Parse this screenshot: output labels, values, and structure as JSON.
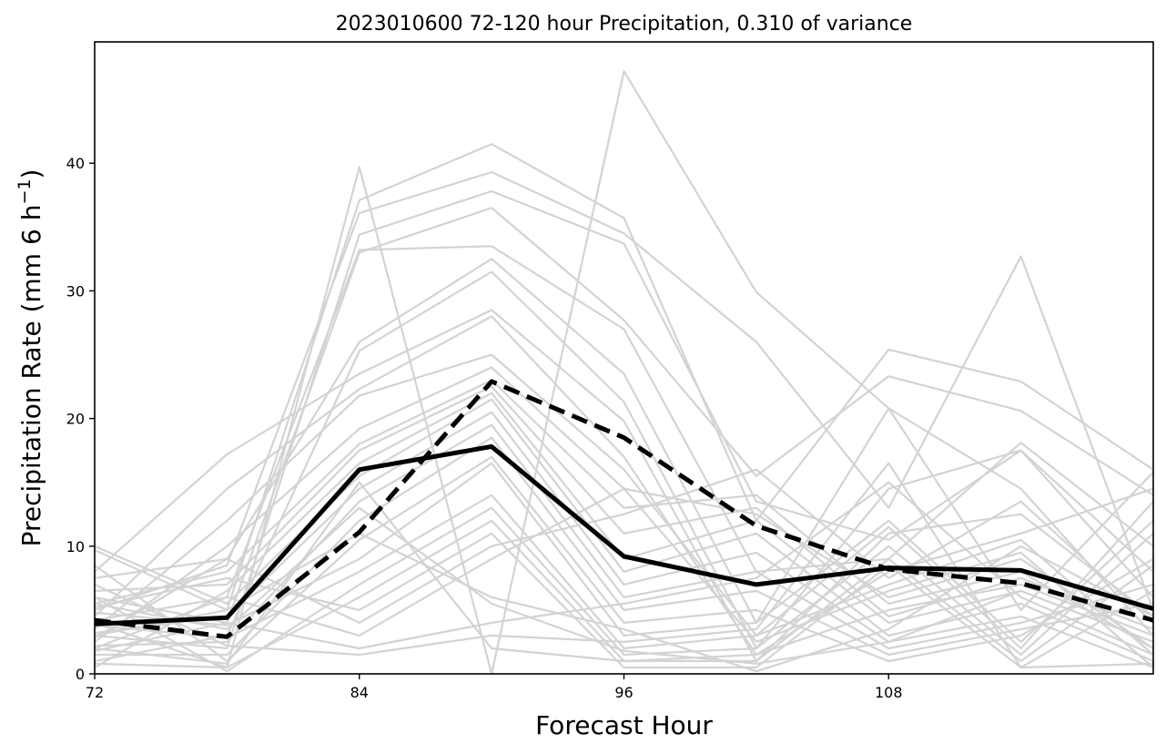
{
  "chart_data": {
    "type": "line",
    "title": "2023010600 72-120 hour Precipitation, 0.310 of variance",
    "xlabel": "Forecast Hour",
    "ylabel_main": "Precipitation Rate (mm 6 h",
    "ylabel_sup": "−1",
    "ylabel_close": ")",
    "xlim": [
      72,
      120
    ],
    "ylim": [
      0,
      49.5
    ],
    "xticks": [
      72,
      84,
      96,
      108
    ],
    "yticks": [
      0,
      10,
      20,
      30,
      40
    ],
    "x": [
      72,
      78,
      84,
      90,
      96,
      102,
      108,
      114,
      120
    ],
    "grid": false,
    "ensemble_color": "#d3d3d3",
    "highlight_color": "#000000",
    "ensemble": [
      [
        4.0,
        0.5,
        39.7,
        0.0,
        47.2,
        29.9,
        20.8,
        5.0,
        15.8
      ],
      [
        9.7,
        5.0,
        37.1,
        41.5,
        35.7,
        12.0,
        25.4,
        22.9,
        16.0
      ],
      [
        5.0,
        8.5,
        36.1,
        39.3,
        34.5,
        26.0,
        13.0,
        32.7,
        5.0
      ],
      [
        3.0,
        2.0,
        34.4,
        37.8,
        33.7,
        13.5,
        10.5,
        17.5,
        8.0
      ],
      [
        6.0,
        4.0,
        33.0,
        36.5,
        27.7,
        15.5,
        23.3,
        20.6,
        14.0
      ],
      [
        2.0,
        6.0,
        33.2,
        33.5,
        27.0,
        8.0,
        9.0,
        18.1,
        10.0
      ],
      [
        7.5,
        9.0,
        26.0,
        32.5,
        23.5,
        4.0,
        20.8,
        14.5,
        3.0
      ],
      [
        1.0,
        3.0,
        25.3,
        31.5,
        21.3,
        2.0,
        14.5,
        17.5,
        6.0
      ],
      [
        8.0,
        17.2,
        23.5,
        28.5,
        19.8,
        1.0,
        11.0,
        12.5,
        4.5
      ],
      [
        4.5,
        14.5,
        22.3,
        28.0,
        17.0,
        1.5,
        8.0,
        11.0,
        14.5
      ],
      [
        3.5,
        12.0,
        21.8,
        25.0,
        16.0,
        3.0,
        7.0,
        10.5,
        1.5
      ],
      [
        2.5,
        10.0,
        19.2,
        24.0,
        14.5,
        2.5,
        6.5,
        9.5,
        0.5
      ],
      [
        5.5,
        8.0,
        18.0,
        23.0,
        13.0,
        14.0,
        5.5,
        8.0,
        2.0
      ],
      [
        6.5,
        7.0,
        17.5,
        22.5,
        11.0,
        13.0,
        4.5,
        7.5,
        3.5
      ],
      [
        0.5,
        6.5,
        16.5,
        22.0,
        9.0,
        12.0,
        4.0,
        6.5,
        2.5
      ],
      [
        10.0,
        5.5,
        15.5,
        21.5,
        8.0,
        11.0,
        3.0,
        5.5,
        1.0
      ],
      [
        3.2,
        4.5,
        14.5,
        20.5,
        7.0,
        9.5,
        2.5,
        4.5,
        0.5
      ],
      [
        2.2,
        2.5,
        13.5,
        19.5,
        6.0,
        8.0,
        2.0,
        4.0,
        7.0
      ],
      [
        1.5,
        1.5,
        12.0,
        18.5,
        5.0,
        6.5,
        1.5,
        3.5,
        5.5
      ],
      [
        8.5,
        1.0,
        10.5,
        17.0,
        4.0,
        5.0,
        1.0,
        3.0,
        9.0
      ],
      [
        4.8,
        3.8,
        9.0,
        16.5,
        3.0,
        4.0,
        12.0,
        2.5,
        12.0
      ],
      [
        3.8,
        2.8,
        8.0,
        14.0,
        2.0,
        3.0,
        11.5,
        2.0,
        13.5
      ],
      [
        6.0,
        0.2,
        7.0,
        13.0,
        1.5,
        2.0,
        10.0,
        1.5,
        11.0
      ],
      [
        0.8,
        0.5,
        6.0,
        12.0,
        1.0,
        1.0,
        9.0,
        1.0,
        8.5
      ],
      [
        5.2,
        7.5,
        5.0,
        11.0,
        0.5,
        0.5,
        8.5,
        0.5,
        6.5
      ],
      [
        2.8,
        9.0,
        4.0,
        10.0,
        12.5,
        16.0,
        7.5,
        13.5,
        4.0
      ],
      [
        4.2,
        6.0,
        3.0,
        9.0,
        14.5,
        12.5,
        6.0,
        9.0,
        2.0
      ],
      [
        1.8,
        4.0,
        2.0,
        4.0,
        5.5,
        7.5,
        15.0,
        6.0,
        1.5
      ],
      [
        7.0,
        2.2,
        1.5,
        3.0,
        2.5,
        3.5,
        16.5,
        0.5,
        0.8
      ],
      [
        2.0,
        0.8,
        15.0,
        2.0,
        1.0,
        1.5,
        5.0,
        7.0,
        3.0
      ],
      [
        3.0,
        5.0,
        11.0,
        6.0,
        3.5,
        0.2,
        3.5,
        10.0,
        4.5
      ],
      [
        5.5,
        3.5,
        13.0,
        5.5,
        1.8,
        0.8,
        2.5,
        6.5,
        2.5
      ]
    ],
    "mean": [
      3.9,
      4.4,
      16.0,
      17.8,
      9.2,
      7.0,
      8.3,
      8.1,
      5.1
    ],
    "highlight": [
      4.2,
      2.9,
      11.1,
      22.9,
      18.5,
      11.6,
      8.2,
      7.1,
      4.2
    ]
  }
}
